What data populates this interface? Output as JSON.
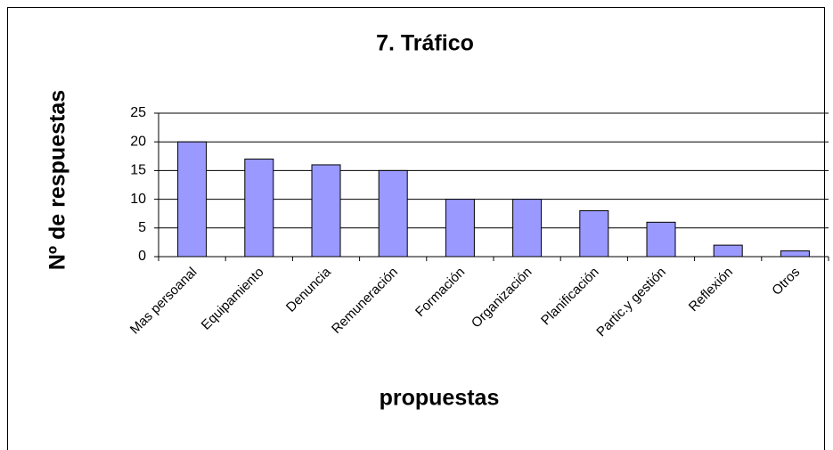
{
  "chart_data": {
    "type": "bar",
    "title": "7. Tráfico",
    "y_label": "Nº de respuestas",
    "x_label": "propuestas",
    "categories": [
      "Mas persoanal",
      "Equipamiento",
      "Denuncia",
      "Remuneración",
      "Formación",
      "Organización",
      "Planificación",
      "Partic.y gestión",
      "Reflexión",
      "Otros"
    ],
    "values": [
      20,
      17,
      16,
      15,
      10,
      10,
      8,
      6,
      2,
      1
    ],
    "color": "#9999ff",
    "ylim": [
      0,
      25
    ],
    "yticks": [
      0,
      5,
      10,
      15,
      20,
      25
    ],
    "grid": true
  }
}
